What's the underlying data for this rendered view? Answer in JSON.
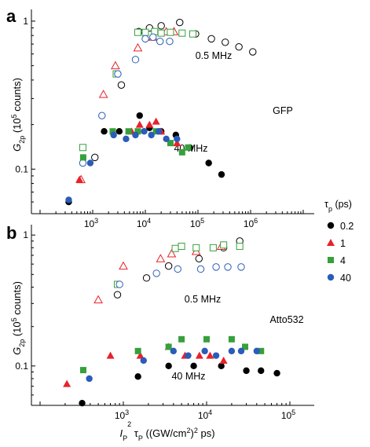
{
  "chart_data": [
    {
      "type": "scatter",
      "panel": "a",
      "scale": "log-log",
      "xlim": [
        280,
        2000000
      ],
      "ylim": [
        0.05,
        1.2
      ],
      "ylabel": {
        "main": "G",
        "sub": "2p",
        "rest": " (10",
        "sup": "5",
        "end": " counts)"
      },
      "x_ticks": [
        {
          "base": "10",
          "exp": "3"
        },
        {
          "base": "10",
          "exp": "4"
        },
        {
          "base": "10",
          "exp": "5"
        },
        {
          "base": "10",
          "exp": "6"
        }
      ],
      "y_ticks": [
        "0.1",
        "1"
      ],
      "annotations": [
        "0.5 MHz",
        "40 MHz",
        "GFP"
      ],
      "series": [
        {
          "name": "0.2",
          "marker": "circle",
          "rep_rate": "0.5 MHz",
          "filled": false,
          "color": "#000000",
          "x": [
            1100,
            3500,
            7500,
            12000,
            20000,
            45000,
            90000,
            180000,
            330000,
            600000,
            1100000
          ],
          "y": [
            0.12,
            0.37,
            0.85,
            0.9,
            0.93,
            0.98,
            0.82,
            0.76,
            0.72,
            0.67,
            0.62
          ]
        },
        {
          "name": "1",
          "marker": "triangle",
          "rep_rate": "0.5 MHz",
          "filled": false,
          "color": "#e8212a",
          "x": [
            600,
            1600,
            2700,
            7200,
            14000,
            25000,
            35000
          ],
          "y": [
            0.085,
            0.32,
            0.5,
            0.66,
            0.78,
            0.85,
            0.85
          ]
        },
        {
          "name": "4",
          "marker": "square",
          "rep_rate": "0.5 MHz",
          "filled": false,
          "color": "#36a03a",
          "x": [
            650,
            2800,
            7200,
            10000,
            15000,
            20000,
            30000,
            50000,
            80000
          ],
          "y": [
            0.14,
            0.44,
            0.84,
            0.84,
            0.85,
            0.83,
            0.84,
            0.83,
            0.82
          ]
        },
        {
          "name": "40",
          "marker": "circle",
          "rep_rate": "0.5 MHz",
          "filled": false,
          "color": "#2a5cb8",
          "x": [
            650,
            1500,
            3000,
            6500,
            10000,
            14000,
            19000,
            29000
          ],
          "y": [
            0.11,
            0.23,
            0.44,
            0.55,
            0.76,
            0.78,
            0.73,
            0.73
          ]
        },
        {
          "name": "0.2",
          "marker": "circle",
          "rep_rate": "40 MHz",
          "filled": true,
          "color": "#000000",
          "x": [
            350,
            1650,
            3200,
            7800,
            12000,
            20000,
            38000,
            70000,
            160000,
            280000
          ],
          "y": [
            0.06,
            0.18,
            0.18,
            0.23,
            0.19,
            0.18,
            0.17,
            0.14,
            0.11,
            0.092
          ]
        },
        {
          "name": "1",
          "marker": "triangle",
          "rep_rate": "40 MHz",
          "filled": true,
          "color": "#e8212a",
          "x": [
            560,
            5500,
            7800,
            12000,
            16000,
            20000,
            40000
          ],
          "y": [
            0.085,
            0.18,
            0.2,
            0.2,
            0.21,
            0.18,
            0.15
          ]
        },
        {
          "name": "4",
          "marker": "square",
          "rep_rate": "40 MHz",
          "filled": true,
          "color": "#36a03a",
          "x": [
            660,
            2400,
            4800,
            7200,
            16000,
            30000,
            50000,
            65000
          ],
          "y": [
            0.12,
            0.18,
            0.18,
            0.18,
            0.18,
            0.15,
            0.13,
            0.14
          ]
        },
        {
          "name": "40",
          "marker": "circle",
          "rep_rate": "40 MHz",
          "filled": true,
          "color": "#2a5cb8",
          "x": [
            350,
            900,
            2500,
            4300,
            6500,
            9500,
            13000,
            18000,
            25000,
            40000
          ],
          "y": [
            0.062,
            0.11,
            0.17,
            0.16,
            0.17,
            0.18,
            0.17,
            0.18,
            0.16,
            0.16
          ]
        }
      ]
    },
    {
      "type": "scatter",
      "panel": "b",
      "scale": "log-log",
      "xlim": [
        200,
        200000
      ],
      "ylim": [
        0.05,
        1.2
      ],
      "ylabel": {
        "main": "G",
        "sub": "2p",
        "rest": " (10",
        "sup": "5",
        "end": " counts)"
      },
      "xlabel": {
        "I": "I",
        "Isub": "P",
        "Isup": "2",
        "tau": " τ",
        "tausub": "P",
        "rest": " ((GW/cm",
        "restsup": "2",
        "end": ")",
        "endsup": "2",
        "tail": " ps)"
      },
      "x_ticks": [
        {
          "base": "10",
          "exp": "3"
        },
        {
          "base": "10",
          "exp": "4"
        },
        {
          "base": "10",
          "exp": "5"
        }
      ],
      "y_ticks": [
        "0.1",
        "1"
      ],
      "annotations": [
        "0.5 MHz",
        "40 MHz",
        "Atto532"
      ],
      "series": [
        {
          "name": "0.2",
          "marker": "circle",
          "rep_rate": "0.5 MHz",
          "filled": false,
          "color": "#000000",
          "x": [
            850,
            1900,
            3500,
            8100,
            16000,
            25000
          ],
          "y": [
            0.35,
            0.47,
            0.58,
            0.66,
            0.8,
            0.9
          ]
        },
        {
          "name": "1",
          "marker": "triangle",
          "rep_rate": "0.5 MHz",
          "filled": false,
          "color": "#e8212a",
          "x": [
            500,
            1000,
            2800,
            3800,
            7500,
            15000
          ],
          "y": [
            0.32,
            0.58,
            0.66,
            0.72,
            0.75,
            0.82
          ]
        },
        {
          "name": "4",
          "marker": "square",
          "rep_rate": "0.5 MHz",
          "filled": false,
          "color": "#36a03a",
          "x": [
            850,
            4200,
            5000,
            7500,
            12000,
            16000,
            25000
          ],
          "y": [
            0.42,
            0.79,
            0.82,
            0.8,
            0.8,
            0.84,
            0.82
          ]
        },
        {
          "name": "40",
          "marker": "circle",
          "rep_rate": "0.5 MHz",
          "filled": false,
          "color": "#2a5cb8",
          "x": [
            900,
            2500,
            4500,
            8500,
            13000,
            18000,
            26000
          ],
          "y": [
            0.42,
            0.51,
            0.55,
            0.55,
            0.57,
            0.57,
            0.57
          ]
        },
        {
          "name": "0.2",
          "marker": "circle",
          "rep_rate": "40 MHz",
          "filled": true,
          "color": "#000000",
          "x": [
            320,
            1500,
            3500,
            7000,
            15000,
            30000,
            45000,
            70000
          ],
          "y": [
            0.052,
            0.083,
            0.1,
            0.1,
            0.1,
            0.092,
            0.092,
            0.088
          ]
        },
        {
          "name": "1",
          "marker": "triangle",
          "rep_rate": "40 MHz",
          "filled": true,
          "color": "#e8212a",
          "x": [
            210,
            700,
            1600,
            3500,
            5500,
            8200,
            11000,
            16000
          ],
          "y": [
            0.073,
            0.12,
            0.12,
            0.14,
            0.12,
            0.12,
            0.12,
            0.11
          ]
        },
        {
          "name": "4",
          "marker": "square",
          "rep_rate": "40 MHz",
          "filled": true,
          "color": "#36a03a",
          "x": [
            330,
            1500,
            3500,
            5000,
            10000,
            20000,
            29000,
            45000
          ],
          "y": [
            0.093,
            0.13,
            0.14,
            0.16,
            0.16,
            0.16,
            0.14,
            0.13
          ]
        },
        {
          "name": "40",
          "marker": "circle",
          "rep_rate": "40 MHz",
          "filled": true,
          "color": "#2a5cb8",
          "x": [
            390,
            1750,
            4000,
            6000,
            9500,
            13000,
            20000,
            26000,
            40000
          ],
          "y": [
            0.08,
            0.11,
            0.13,
            0.12,
            0.13,
            0.12,
            0.13,
            0.13,
            0.13
          ]
        }
      ]
    }
  ],
  "legend": {
    "title": {
      "main": "τ",
      "sub": "p",
      "unit": " (ps)"
    },
    "entries": [
      {
        "label": "0.2",
        "marker": "circle",
        "color": "#000000"
      },
      {
        "label": "1",
        "marker": "triangle",
        "color": "#e8212a"
      },
      {
        "label": "4",
        "marker": "square",
        "color": "#36a03a"
      },
      {
        "label": "40",
        "marker": "circle",
        "color": "#2a5cb8"
      }
    ]
  }
}
